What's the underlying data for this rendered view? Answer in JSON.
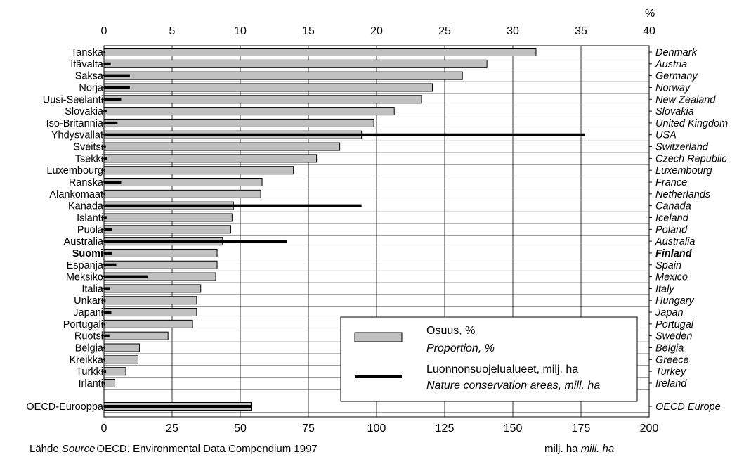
{
  "chart_data": {
    "type": "bar",
    "top_axis": {
      "unit_label": "%",
      "min": 0,
      "max": 40,
      "ticks": [
        "0",
        "5",
        "10",
        "15",
        "20",
        "25",
        "30",
        "35",
        "40"
      ]
    },
    "bottom_axis": {
      "min": 0,
      "max": 200,
      "ticks": [
        "0",
        "25",
        "50",
        "75",
        "100",
        "125",
        "150",
        "175",
        "200"
      ]
    },
    "categories": [
      {
        "fi": "Tanska",
        "en": "Denmark",
        "proportion": 31.7,
        "area": 0.5
      },
      {
        "fi": "Itävalta",
        "en": "Austria",
        "proportion": 28.1,
        "area": 2.5
      },
      {
        "fi": "Saksa",
        "en": "Germany",
        "proportion": 26.3,
        "area": 9.5
      },
      {
        "fi": "Norja",
        "en": "Norway",
        "proportion": 24.1,
        "area": 9.5
      },
      {
        "fi": "Uusi-Seelanti",
        "en": "New Zealand",
        "proportion": 23.3,
        "area": 6.3
      },
      {
        "fi": "Slovakia",
        "en": "Slovakia",
        "proportion": 21.3,
        "area": 1.0
      },
      {
        "fi": "Iso-Britannia",
        "en": "United Kingdom",
        "proportion": 19.8,
        "area": 5.0
      },
      {
        "fi": "Yhdysvallat",
        "en": "USA",
        "proportion": 18.9,
        "area": 176.5
      },
      {
        "fi": "Sveitsi",
        "en": "Switzerland",
        "proportion": 17.3,
        "area": 0.7
      },
      {
        "fi": "Tsekki",
        "en": "Czech Republic",
        "proportion": 15.6,
        "area": 1.3
      },
      {
        "fi": "Luxembourg",
        "en": "Luxembourg",
        "proportion": 13.9,
        "area": 0.1
      },
      {
        "fi": "Ranska",
        "en": "France",
        "proportion": 11.6,
        "area": 6.3
      },
      {
        "fi": "Alankomaat",
        "en": "Netherlands",
        "proportion": 11.5,
        "area": 0.5
      },
      {
        "fi": "Kanada",
        "en": "Canada",
        "proportion": 9.5,
        "area": 94.5
      },
      {
        "fi": "Islanti",
        "en": "Iceland",
        "proportion": 9.4,
        "area": 1.0
      },
      {
        "fi": "Puola",
        "en": "Poland",
        "proportion": 9.3,
        "area": 3.0
      },
      {
        "fi": "Australia",
        "en": "Australia",
        "proportion": 8.7,
        "area": 67.0
      },
      {
        "fi": "Suomi",
        "en": "Finland",
        "proportion": 8.3,
        "area": 3.0,
        "bold": true
      },
      {
        "fi": "Espanja",
        "en": "Spain",
        "proportion": 8.3,
        "area": 4.5
      },
      {
        "fi": "Meksiko",
        "en": "Mexico",
        "proportion": 8.2,
        "area": 16.0
      },
      {
        "fi": "Italia",
        "en": "Italy",
        "proportion": 7.1,
        "area": 2.2
      },
      {
        "fi": "Unkari",
        "en": "Hungary",
        "proportion": 6.8,
        "area": 0.6
      },
      {
        "fi": "Japani",
        "en": "Japan",
        "proportion": 6.8,
        "area": 2.7
      },
      {
        "fi": "Portugali",
        "en": "Portugal",
        "proportion": 6.5,
        "area": 0.5
      },
      {
        "fi": "Ruotsi",
        "en": "Sweden",
        "proportion": 4.7,
        "area": 2.0
      },
      {
        "fi": "Belgia",
        "en": "Belgia",
        "proportion": 2.6,
        "area": 0.1
      },
      {
        "fi": "Kreikka",
        "en": "Greece",
        "proportion": 2.5,
        "area": 0.3
      },
      {
        "fi": "Turkki",
        "en": "Turkey",
        "proportion": 1.6,
        "area": 0.8
      },
      {
        "fi": "Irlanti",
        "en": "Ireland",
        "proportion": 0.8,
        "area": 0.1
      }
    ],
    "aggregate": {
      "fi": "OECD-Eurooppa",
      "en": "OECD Europe",
      "proportion": 10.8,
      "area": 54.0
    },
    "legend": {
      "placement": "bottom-right",
      "proportion_fi": "Osuus, %",
      "proportion_en": "Proportion, %",
      "area_fi": "Luonnonsuojelualueet, milj. ha",
      "area_en": "Nature conservation areas, mill. ha"
    },
    "colors": {
      "bar_fill": "#c0c0c0",
      "bar_stroke": "#000000",
      "area_line": "#000000",
      "grid": "#000000"
    }
  },
  "footer": {
    "source_prefix": "Lähde ",
    "source_italic": "Source",
    "source_text": "OECD, Environmental Data Compendium 1997",
    "unit_fi": "milj. ha ",
    "unit_en": "mill. ha"
  }
}
